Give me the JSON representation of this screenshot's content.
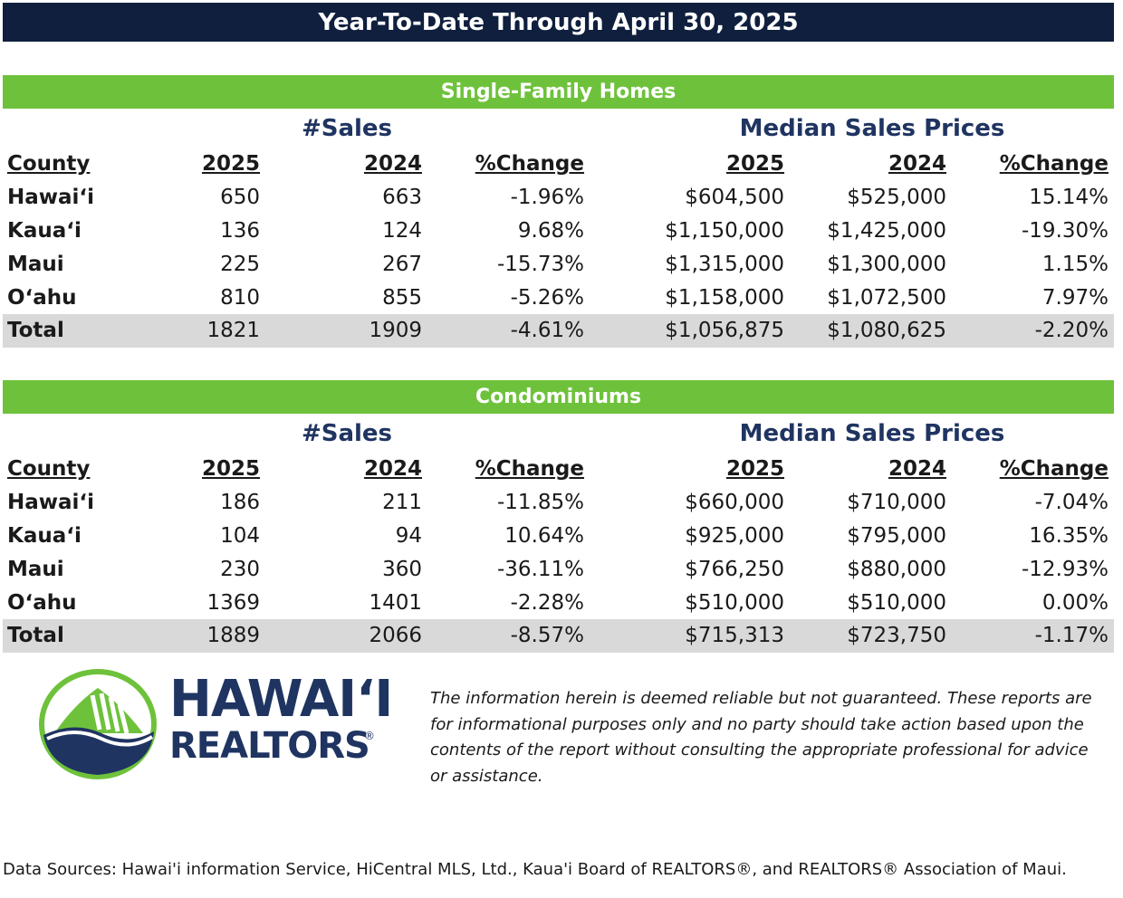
{
  "title": "Year-To-Date Through April 30, 2025",
  "sections": [
    {
      "header": "Single-Family Homes",
      "group_sales": "#Sales",
      "group_prices": "Median Sales Prices",
      "columns": [
        "County",
        "2025",
        "2024",
        "%Change",
        "2025",
        "2024",
        "%Change"
      ],
      "rows": [
        [
          "Hawaiʻi",
          "650",
          "663",
          "-1.96%",
          "$604,500",
          "$525,000",
          "15.14%"
        ],
        [
          "Kauaʻi",
          "136",
          "124",
          "9.68%",
          "$1,150,000",
          "$1,425,000",
          "-19.30%"
        ],
        [
          "Maui",
          "225",
          "267",
          "-15.73%",
          "$1,315,000",
          "$1,300,000",
          "1.15%"
        ],
        [
          "Oʻahu",
          "810",
          "855",
          "-5.26%",
          "$1,158,000",
          "$1,072,500",
          "7.97%"
        ]
      ],
      "total": [
        "Total",
        "1821",
        "1909",
        "-4.61%",
        "$1,056,875",
        "$1,080,625",
        "-2.20%"
      ]
    },
    {
      "header": "Condominiums",
      "group_sales": "#Sales",
      "group_prices": "Median Sales Prices",
      "columns": [
        "County",
        "2025",
        "2024",
        "%Change",
        "2025",
        "2024",
        "%Change"
      ],
      "rows": [
        [
          "Hawaiʻi",
          "186",
          "211",
          "-11.85%",
          "$660,000",
          "$710,000",
          "-7.04%"
        ],
        [
          "Kauaʻi",
          "104",
          "94",
          "10.64%",
          "$925,000",
          "$795,000",
          "16.35%"
        ],
        [
          "Maui",
          "230",
          "360",
          "-36.11%",
          "$766,250",
          "$880,000",
          "-12.93%"
        ],
        [
          "Oʻahu",
          "1369",
          "1401",
          "-2.28%",
          "$510,000",
          "$510,000",
          "0.00%"
        ]
      ],
      "total": [
        "Total",
        "1889",
        "2066",
        "-8.57%",
        "$715,313",
        "$723,750",
        "-1.17%"
      ]
    }
  ],
  "logo": {
    "line1": "HAWAIʻI",
    "line2": "REALTORS",
    "reg": "®",
    "colors": {
      "navy": "#1f3461",
      "green": "#6ec23b"
    }
  },
  "disclaimer": "The information herein is deemed reliable but not guaranteed. These reports are for informational purposes only and no party should take action based upon the contents of the report without consulting the appropriate professional for advice or assistance.",
  "sources": "Data Sources: Hawai'i information Service, HiCentral MLS, Ltd., Kaua'i Board of REALTORS®, and REALTORS® Association of Maui.",
  "colors": {
    "title_bg": "#0f1f3d",
    "section_bg": "#6ec23b",
    "group_text": "#1f3461",
    "total_bg": "#d9d9d9"
  }
}
